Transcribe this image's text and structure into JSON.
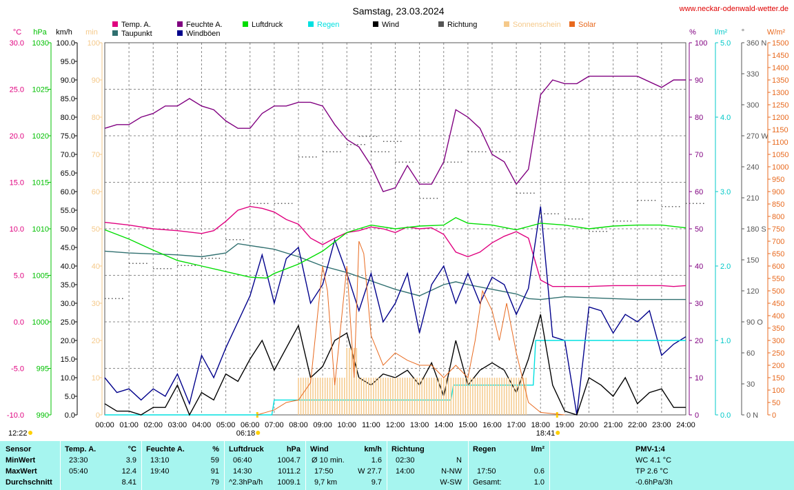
{
  "header": {
    "title": "Samstag, 23.03.2024",
    "site": "www.neckar-odenwald-wetter.de"
  },
  "legend": [
    {
      "label": "Temp. A.",
      "color": "#e0007f"
    },
    {
      "label": "Taupunkt",
      "color": "#2f6f6f"
    },
    {
      "label": "Feuchte A.",
      "color": "#800080"
    },
    {
      "label": "Windböen",
      "color": "#00008b"
    },
    {
      "label": "Luftdruck",
      "color": "#00dd00"
    },
    {
      "label": "Regen",
      "color": "#00e0e0"
    },
    {
      "label": "Wind",
      "color": "#000000"
    },
    {
      "label": "Richtung",
      "color": "#555555"
    },
    {
      "label": "Sonnenschein",
      "color": "#f5c98a"
    },
    {
      "label": "Solar",
      "color": "#e8691e"
    }
  ],
  "axes": {
    "temp": {
      "unit": "°C",
      "ticks": [
        "30.0",
        "25.0",
        "20.0",
        "15.0",
        "10.0",
        "5.0",
        "0.0",
        "-5.0",
        "-10.0"
      ],
      "color": "#e0007f"
    },
    "pressure": {
      "unit": "hPa",
      "ticks": [
        "1030",
        "1025",
        "1020",
        "1015",
        "1010",
        "1005",
        "1000",
        "995",
        "990"
      ],
      "color": "#00c000"
    },
    "wind": {
      "unit": "km/h",
      "ticks": [
        "100.0",
        "95.0",
        "90.0",
        "85.0",
        "80.0",
        "75.0",
        "70.0",
        "65.0",
        "60.0",
        "55.0",
        "50.0",
        "45.0",
        "40.0",
        "35.0",
        "30.0",
        "25.0",
        "20.0",
        "15.0",
        "10.0",
        "5.0",
        "0.0"
      ],
      "color": "#000000"
    },
    "sunshine": {
      "unit": "min",
      "ticks": [
        "100",
        "90",
        "80",
        "70",
        "60",
        "50",
        "40",
        "30",
        "20",
        "10",
        "0"
      ],
      "color": "#f5c98a"
    },
    "humidity": {
      "unit": "%",
      "ticks": [
        "100",
        "90",
        "80",
        "70",
        "60",
        "50",
        "40",
        "30",
        "20",
        "10",
        "0"
      ],
      "color": "#800080"
    },
    "rain": {
      "unit": "l/m²",
      "ticks": [
        "5.0",
        "4.0",
        "3.0",
        "2.0",
        "1.0",
        "0.0"
      ],
      "color": "#00c8c8"
    },
    "direction": {
      "unit": "°",
      "ticks": [
        "360 N",
        "330",
        "300",
        "270 W",
        "240",
        "210",
        "180 S",
        "150",
        "120",
        "90 O",
        "60",
        "30",
        "0 N"
      ],
      "color": "#555555"
    },
    "solar": {
      "unit": "W/m²",
      "ticks": [
        "1500",
        "1450",
        "1400",
        "1350",
        "1300",
        "1250",
        "1200",
        "1150",
        "1100",
        "1050",
        "1000",
        "950",
        "900",
        "850",
        "800",
        "750",
        "700",
        "650",
        "600",
        "550",
        "500",
        "450",
        "400",
        "350",
        "300",
        "250",
        "200",
        "150",
        "100",
        "50",
        "0"
      ],
      "color": "#e8691e"
    },
    "time": {
      "ticks": [
        "00:00",
        "01:00",
        "02:00",
        "03:00",
        "04:00",
        "05:00",
        "06:00",
        "07:00",
        "08:00",
        "09:00",
        "10:00",
        "11:00",
        "12:00",
        "13:00",
        "14:00",
        "15:00",
        "16:00",
        "17:00",
        "18:00",
        "19:00",
        "20:00",
        "21:00",
        "22:00",
        "23:00",
        "24:00"
      ]
    }
  },
  "sun": {
    "noon": "12:22",
    "sunrise": "06:18",
    "sunset": "18:41"
  },
  "chart_data": {
    "type": "line",
    "x_unit": "hours",
    "series": [
      {
        "name": "Temp. A.",
        "unit": "°C",
        "x": [
          0,
          1,
          2,
          3,
          4,
          4.5,
          5,
          5.5,
          6,
          6.5,
          7,
          7.5,
          8,
          8.5,
          9,
          9.5,
          10,
          10.5,
          11,
          11.5,
          12,
          12.5,
          13,
          13.5,
          14,
          14.5,
          15,
          15.5,
          16,
          16.5,
          17,
          17.5,
          18,
          18.5,
          19,
          20,
          21,
          22,
          23,
          23.5,
          24
        ],
        "y": [
          10.7,
          10.4,
          10.0,
          9.8,
          9.5,
          9.8,
          10.8,
          12.0,
          12.4,
          12.2,
          11.8,
          11.0,
          10.5,
          9.0,
          8.3,
          9.0,
          9.6,
          9.8,
          10.2,
          10.0,
          9.6,
          10.2,
          10.0,
          10.1,
          9.4,
          7.5,
          7.0,
          7.5,
          8.5,
          9.2,
          9.7,
          9.0,
          4.5,
          3.8,
          3.8,
          3.8,
          3.9,
          3.9,
          3.9,
          3.8,
          3.9
        ]
      },
      {
        "name": "Taupunkt",
        "unit": "°C",
        "x": [
          0,
          1,
          2,
          3,
          4,
          5,
          5.5,
          6,
          7,
          8,
          9,
          10,
          11,
          12,
          13,
          14,
          14.5,
          15,
          16,
          17,
          17.5,
          18,
          19,
          20,
          21,
          22,
          23,
          24
        ],
        "y": [
          7.6,
          7.4,
          7.3,
          7.2,
          7.0,
          7.4,
          8.4,
          8.2,
          7.8,
          7.0,
          6.0,
          5.3,
          4.4,
          3.5,
          2.8,
          4.0,
          4.3,
          4.0,
          3.5,
          3.0,
          2.5,
          2.4,
          2.7,
          2.6,
          2.5,
          2.4,
          2.4,
          2.4
        ]
      },
      {
        "name": "Feuchte A.",
        "unit": "%",
        "x": [
          0,
          0.5,
          1,
          1.5,
          2,
          2.5,
          3,
          3.5,
          4,
          4.5,
          5,
          5.5,
          6,
          6.5,
          7,
          7.5,
          8,
          8.5,
          9,
          9.5,
          10,
          10.5,
          11,
          11.5,
          12,
          12.5,
          13,
          13.5,
          14,
          14.5,
          15,
          15.5,
          16,
          16.5,
          17,
          17.5,
          18,
          18.5,
          19,
          19.5,
          20,
          21,
          22,
          23,
          23.5,
          24
        ],
        "y": [
          77,
          78,
          78,
          80,
          81,
          83,
          83,
          85,
          83,
          82,
          79,
          77,
          77,
          81,
          83,
          83,
          84,
          84,
          83,
          78,
          74,
          72,
          67,
          60,
          61,
          67,
          62,
          62,
          68,
          82,
          80,
          77,
          70,
          68,
          62,
          66,
          86,
          90,
          89,
          89,
          91,
          91,
          91,
          88,
          90,
          90
        ]
      },
      {
        "name": "Windböen",
        "unit": "km/h",
        "x": [
          0,
          0.5,
          1,
          1.5,
          2,
          2.5,
          3,
          3.5,
          4,
          4.5,
          5,
          5.5,
          6,
          6.5,
          7,
          7.5,
          8,
          8.5,
          9,
          9.5,
          10,
          10.5,
          11,
          11.5,
          12,
          12.5,
          13,
          13.5,
          14,
          14.5,
          15,
          15.5,
          16,
          16.5,
          17,
          17.5,
          18,
          18.5,
          19,
          19.5,
          20,
          20.5,
          21,
          21.5,
          22,
          22.5,
          23,
          23.5,
          24
        ],
        "y": [
          10,
          6,
          7,
          4,
          7,
          5,
          11,
          3,
          16,
          10,
          18,
          25,
          32,
          43,
          30,
          42,
          45,
          30,
          35,
          47,
          38,
          28,
          38,
          25,
          30,
          38,
          22,
          35,
          40,
          30,
          38,
          30,
          37,
          35,
          27,
          34,
          56,
          21,
          20,
          0,
          29,
          28,
          22,
          27,
          25,
          28,
          16,
          19,
          21
        ]
      },
      {
        "name": "Luftdruck",
        "unit": "hPa",
        "x": [
          0,
          1,
          2,
          3,
          4,
          5,
          6,
          6.67,
          7,
          8,
          9,
          10,
          11,
          12,
          13,
          14,
          14.5,
          15,
          16,
          17,
          18,
          19,
          20,
          21,
          22,
          23,
          24
        ],
        "y": [
          1009.9,
          1008.9,
          1007.7,
          1006.6,
          1006.0,
          1005.4,
          1004.8,
          1004.7,
          1005.2,
          1006.2,
          1007.6,
          1009.6,
          1010.4,
          1010.0,
          1010.3,
          1010.4,
          1011.2,
          1010.6,
          1010.4,
          1009.9,
          1010.6,
          1010.4,
          1010.0,
          1010.3,
          1010.4,
          1010.4,
          1010.1
        ]
      },
      {
        "name": "Regen",
        "unit": "l/m²",
        "x": [
          0,
          6.9,
          7,
          14.3,
          14.4,
          15,
          17.7,
          17.8,
          24
        ],
        "y": [
          0,
          0,
          0.2,
          0.2,
          0.4,
          0.4,
          0.4,
          1.0,
          1.0
        ]
      },
      {
        "name": "Wind",
        "unit": "km/h",
        "x": [
          0,
          0.5,
          1,
          1.5,
          2,
          2.5,
          3,
          3.5,
          4,
          4.5,
          5,
          5.5,
          6,
          6.5,
          7,
          7.5,
          8,
          8.5,
          9,
          9.5,
          10,
          10.5,
          11,
          11.5,
          12,
          12.5,
          13,
          13.5,
          14,
          14.5,
          15,
          15.5,
          16,
          16.5,
          17,
          17.5,
          18,
          18.5,
          19,
          19.5,
          20,
          20.5,
          21,
          21.5,
          22,
          22.5,
          23,
          23.5,
          24
        ],
        "y": [
          3,
          1,
          1,
          0,
          2,
          2,
          8,
          0,
          6,
          4,
          11,
          9,
          15,
          20,
          12,
          18,
          24,
          10,
          13,
          20,
          22,
          10,
          8,
          11,
          10,
          12,
          8,
          14,
          5,
          20,
          8,
          12,
          14,
          12,
          6,
          15,
          27,
          8,
          1,
          0,
          10,
          8,
          5,
          10,
          3,
          6,
          7,
          2,
          2
        ]
      },
      {
        "name": "Richtung",
        "unit": "°",
        "x": [
          0,
          1,
          2,
          3,
          4,
          5,
          6,
          7,
          8,
          9,
          10,
          10.5,
          11,
          11.5,
          12,
          13,
          14,
          15,
          16,
          17,
          18,
          19,
          20,
          21,
          22,
          23,
          24
        ],
        "y": [
          113,
          147,
          142,
          145,
          152,
          170,
          205,
          205,
          250,
          255,
          262,
          270,
          255,
          265,
          245,
          210,
          245,
          255,
          255,
          215,
          195,
          190,
          178,
          188,
          208,
          202,
          205
        ]
      },
      {
        "name": "Sonnenschein",
        "unit": "min",
        "x": [
          7,
          8,
          8.5,
          9,
          9.5,
          10,
          10.5,
          11,
          11.5,
          12,
          12.5,
          13,
          13.5,
          14,
          14.5,
          15,
          15.5,
          16,
          16.5,
          17,
          17.5
        ],
        "y": [
          0,
          10,
          10,
          10,
          10,
          18,
          10,
          10,
          10,
          10,
          10,
          10,
          10,
          10,
          10,
          10,
          10,
          10,
          10,
          10,
          0
        ]
      },
      {
        "name": "Solar",
        "unit": "W/m²",
        "x": [
          6.3,
          7,
          7.5,
          8,
          8.5,
          9,
          9.2,
          9.5,
          10,
          10.3,
          10.5,
          10.7,
          11,
          11.5,
          12,
          12.5,
          13,
          13.5,
          14,
          14.5,
          15,
          15.3,
          15.6,
          16,
          16.3,
          16.6,
          17,
          17.5,
          18,
          18.5,
          19
        ],
        "y": [
          0,
          20,
          50,
          60,
          130,
          600,
          500,
          120,
          600,
          150,
          700,
          650,
          320,
          200,
          250,
          220,
          200,
          200,
          150,
          200,
          150,
          300,
          500,
          420,
          300,
          450,
          250,
          50,
          10,
          5,
          0
        ]
      }
    ],
    "temp_range": [
      -10,
      30
    ],
    "pressure_range": [
      990,
      1030
    ],
    "wind_range": [
      0,
      100
    ],
    "humidity_range": [
      0,
      100
    ],
    "rain_range": [
      0,
      5
    ],
    "direction_range": [
      0,
      360
    ],
    "solar_range": [
      0,
      1500
    ],
    "x_range": [
      0,
      24
    ],
    "grid": true
  },
  "stats": {
    "sensor": {
      "header": "Sensor",
      "rows": [
        "MinWert",
        "MaxWert",
        "Durchschnitt"
      ]
    },
    "temp": {
      "header": "Temp. A.",
      "unit": "°C",
      "min_t": "23:30",
      "min": "3.9",
      "max_t": "05:40",
      "max": "12.4",
      "avg": "8.41"
    },
    "hum": {
      "header": "Feuchte A.",
      "unit": "%",
      "min_t": "13:10",
      "min": "59",
      "max_t": "19:40",
      "max": "91",
      "avg": "79"
    },
    "press": {
      "header": "Luftdruck",
      "unit": "hPa",
      "min_t": "06:40",
      "min": "1004.7",
      "max_t": "14:30",
      "max": "1011.2",
      "avg_t": "^2.3hPa/h",
      "avg": "1009.1"
    },
    "wind": {
      "header": "Wind",
      "unit": "km/h",
      "r1_l": "Ø 10 min.",
      "r1": "1.6",
      "r2_l": "17:50",
      "r2": "W 27.7",
      "r3_l": "9,7 km",
      "r3": "9.7"
    },
    "dir": {
      "header": "Richtung",
      "r1_t": "02:30",
      "r1": "N",
      "r2_t": "14:00",
      "r2": "N-NW",
      "r3": "W-SW"
    },
    "rain": {
      "header": "Regen",
      "unit": "l/m²",
      "r2_t": "17:50",
      "r2": "0.6",
      "r3_t": "Gesamt:",
      "r3": "1.0"
    },
    "pmv": {
      "header": "PMV-1:4",
      "r1": "WC 4.1 °C",
      "r2": "TP 2.6 °C",
      "r3": "-0.6hPa/3h"
    }
  }
}
